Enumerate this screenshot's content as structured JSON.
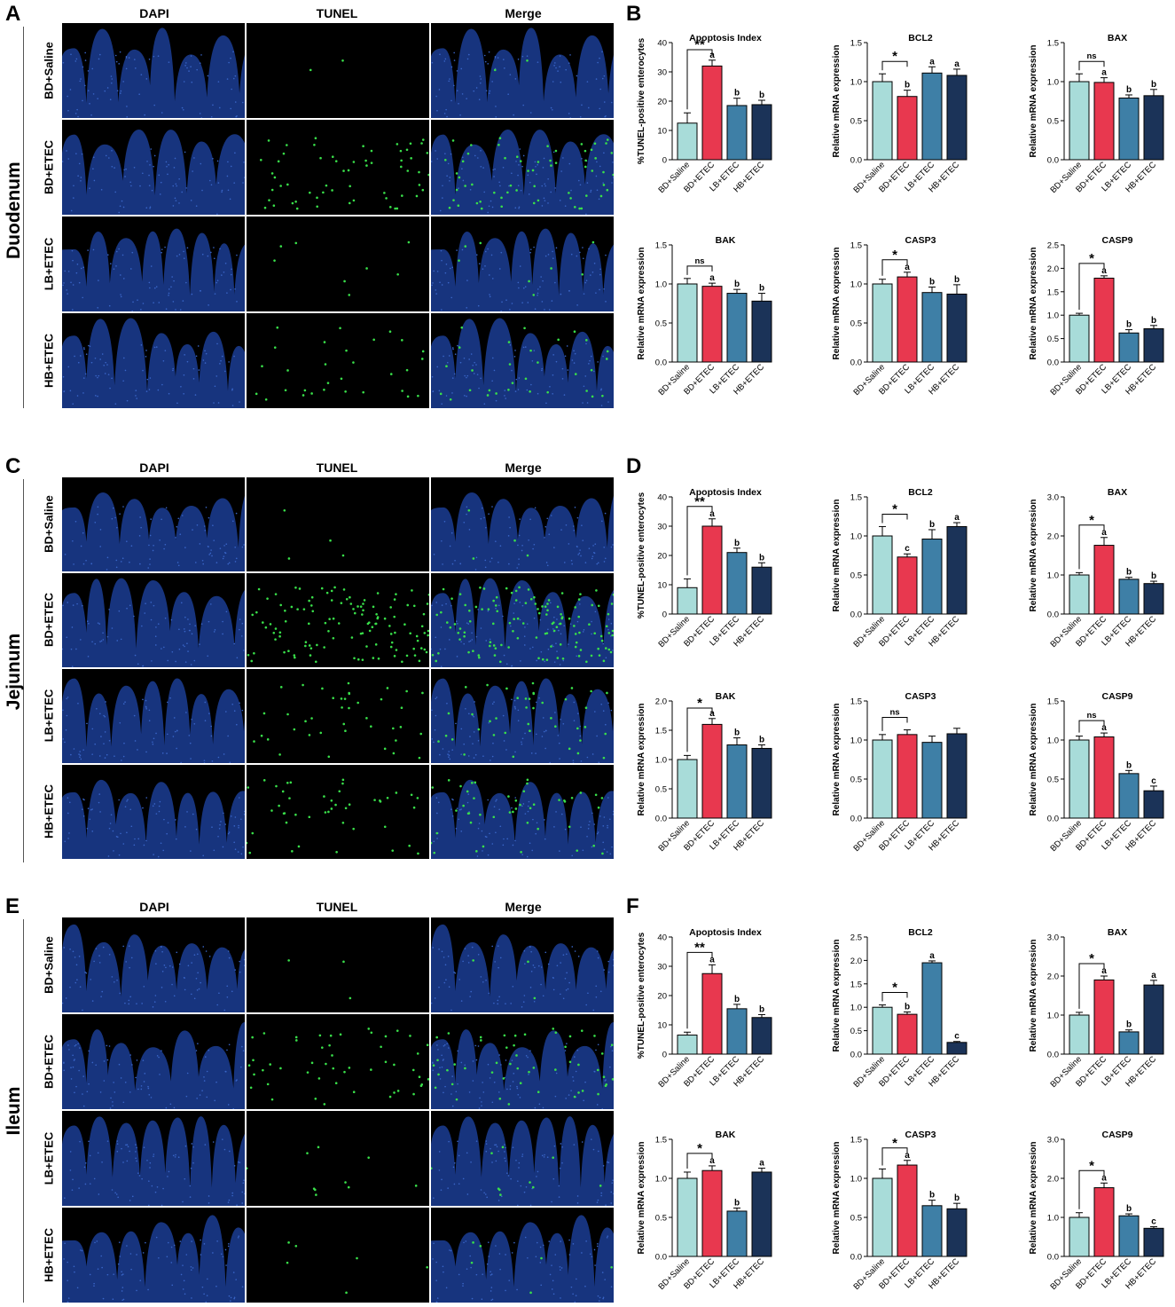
{
  "panels": {
    "A": "A",
    "B": "B",
    "C": "C",
    "D": "D",
    "E": "E",
    "F": "F"
  },
  "tissues": [
    "Duodenum",
    "Jejunum",
    "Ileum"
  ],
  "column_headers": [
    "DAPI",
    "TUNEL",
    "Merge"
  ],
  "row_labels": [
    "BD+Saline",
    "BD+ETEC",
    "LB+ETEC",
    "HB+ETEC"
  ],
  "colors": {
    "bar_fill": [
      "#a8dcd9",
      "#e8384f",
      "#3e7fa6",
      "#1b3358"
    ],
    "dapi": "#1a3a8c",
    "tunel": "#39e04a"
  },
  "chart_data": [
    {
      "type": "bar",
      "title": "Apoptosis Index",
      "ylabel": "%TUNEL-positive enterocytes",
      "categories": [
        "BD+Saline",
        "BD+ETEC",
        "LB+ETEC",
        "HB+ETEC"
      ],
      "values": [
        12.5,
        32,
        18.5,
        18.8
      ],
      "errors": [
        3.5,
        2,
        2.5,
        1.5
      ],
      "letters": [
        "",
        "a",
        "b",
        "b"
      ],
      "ylim": [
        0,
        40
      ],
      "yticks": [
        0,
        10,
        20,
        30,
        40
      ],
      "sig": "**"
    },
    {
      "type": "bar",
      "title": "BCL2",
      "ylabel": "Relative mRNA expression",
      "categories": [
        "BD+Saline",
        "BD+ETEC",
        "LB+ETEC",
        "HB+ETEC"
      ],
      "values": [
        1.0,
        0.81,
        1.11,
        1.08
      ],
      "errors": [
        0.1,
        0.08,
        0.08,
        0.08
      ],
      "letters": [
        "",
        "b",
        "a",
        "a"
      ],
      "ylim": [
        0,
        1.5
      ],
      "yticks": [
        0.0,
        0.5,
        1.0,
        1.5
      ],
      "sig": "*"
    },
    {
      "type": "bar",
      "title": "BAX",
      "ylabel": "Relative mRNA expression",
      "categories": [
        "BD+Saline",
        "BD+ETEC",
        "LB+ETEC",
        "HB+ETEC"
      ],
      "values": [
        1.0,
        0.99,
        0.79,
        0.82
      ],
      "errors": [
        0.1,
        0.06,
        0.04,
        0.08
      ],
      "letters": [
        "",
        "a",
        "b",
        "b"
      ],
      "ylim": [
        0,
        1.5
      ],
      "yticks": [
        0.0,
        0.5,
        1.0,
        1.5
      ],
      "sig": "ns"
    },
    {
      "type": "bar",
      "title": "BAK",
      "ylabel": "Relative mRNA expression",
      "categories": [
        "BD+Saline",
        "BD+ETEC",
        "LB+ETEC",
        "HB+ETEC"
      ],
      "values": [
        1.0,
        0.97,
        0.88,
        0.78
      ],
      "errors": [
        0.07,
        0.04,
        0.05,
        0.1
      ],
      "letters": [
        "",
        "a",
        "b",
        "b"
      ],
      "ylim": [
        0,
        1.5
      ],
      "yticks": [
        0.0,
        0.5,
        1.0,
        1.5
      ],
      "sig": "ns"
    },
    {
      "type": "bar",
      "title": "CASP3",
      "ylabel": "Relative mRNA expression",
      "categories": [
        "BD+Saline",
        "BD+ETEC",
        "LB+ETEC",
        "HB+ETEC"
      ],
      "values": [
        1.0,
        1.09,
        0.89,
        0.87
      ],
      "errors": [
        0.06,
        0.06,
        0.07,
        0.12
      ],
      "letters": [
        "",
        "a",
        "b",
        "b"
      ],
      "ylim": [
        0,
        1.5
      ],
      "yticks": [
        0.0,
        0.5,
        1.0,
        1.5
      ],
      "sig": "*"
    },
    {
      "type": "bar",
      "title": "CASP9",
      "ylabel": "Relative mRNA expression",
      "categories": [
        "BD+Saline",
        "BD+ETEC",
        "LB+ETEC",
        "HB+ETEC"
      ],
      "values": [
        1.0,
        1.79,
        0.62,
        0.71
      ],
      "errors": [
        0.04,
        0.05,
        0.07,
        0.07
      ],
      "letters": [
        "",
        "a",
        "b",
        "b"
      ],
      "ylim": [
        0,
        2.5
      ],
      "yticks": [
        0.0,
        0.5,
        1.0,
        1.5,
        2.0,
        2.5
      ],
      "sig": "*"
    },
    {
      "type": "bar",
      "title": "Apoptosis Index",
      "ylabel": "%TUNEL-positive enterocytes",
      "categories": [
        "BD+Saline",
        "BD+ETEC",
        "LB+ETEC",
        "HB+ETEC"
      ],
      "values": [
        9,
        30,
        21,
        16
      ],
      "errors": [
        3,
        2.5,
        1.5,
        1.5
      ],
      "letters": [
        "",
        "a",
        "b",
        "b"
      ],
      "ylim": [
        0,
        40
      ],
      "yticks": [
        0,
        10,
        20,
        30,
        40
      ],
      "sig": "**"
    },
    {
      "type": "bar",
      "title": "BCL2",
      "ylabel": "Relative mRNA expression",
      "categories": [
        "BD+Saline",
        "BD+ETEC",
        "LB+ETEC",
        "HB+ETEC"
      ],
      "values": [
        1.0,
        0.73,
        0.96,
        1.12
      ],
      "errors": [
        0.12,
        0.04,
        0.12,
        0.05
      ],
      "letters": [
        "",
        "c",
        "b",
        "a"
      ],
      "ylim": [
        0,
        1.5
      ],
      "yticks": [
        0.0,
        0.5,
        1.0,
        1.5
      ],
      "sig": "*"
    },
    {
      "type": "bar",
      "title": "BAX",
      "ylabel": "Relative mRNA expression",
      "categories": [
        "BD+Saline",
        "BD+ETEC",
        "LB+ETEC",
        "HB+ETEC"
      ],
      "values": [
        1.0,
        1.76,
        0.89,
        0.78
      ],
      "errors": [
        0.06,
        0.2,
        0.05,
        0.06
      ],
      "letters": [
        "",
        "a",
        "b",
        "b"
      ],
      "ylim": [
        0,
        3.0
      ],
      "yticks": [
        0.0,
        1.0,
        2.0,
        3.0
      ],
      "sig": "*"
    },
    {
      "type": "bar",
      "title": "BAK",
      "ylabel": "Relative mRNA expression",
      "categories": [
        "BD+Saline",
        "BD+ETEC",
        "LB+ETEC",
        "HB+ETEC"
      ],
      "values": [
        1.0,
        1.6,
        1.25,
        1.19
      ],
      "errors": [
        0.07,
        0.1,
        0.12,
        0.06
      ],
      "letters": [
        "",
        "a",
        "b",
        "b"
      ],
      "ylim": [
        0,
        2.0
      ],
      "yticks": [
        0.0,
        0.5,
        1.0,
        1.5,
        2.0
      ],
      "sig": "*"
    },
    {
      "type": "bar",
      "title": "CASP3",
      "ylabel": "Relative mRNA expression",
      "categories": [
        "BD+Saline",
        "BD+ETEC",
        "LB+ETEC",
        "HB+ETEC"
      ],
      "values": [
        1.0,
        1.07,
        0.97,
        1.08
      ],
      "errors": [
        0.07,
        0.06,
        0.08,
        0.07
      ],
      "letters": [
        "",
        "",
        "",
        ""
      ],
      "ylim": [
        0,
        1.5
      ],
      "yticks": [
        0.0,
        0.5,
        1.0,
        1.5
      ],
      "sig": "ns"
    },
    {
      "type": "bar",
      "title": "CASP9",
      "ylabel": "Relative mRNA expression",
      "categories": [
        "BD+Saline",
        "BD+ETEC",
        "LB+ETEC",
        "HB+ETEC"
      ],
      "values": [
        1.0,
        1.04,
        0.57,
        0.35
      ],
      "errors": [
        0.05,
        0.05,
        0.04,
        0.06
      ],
      "letters": [
        "",
        "a",
        "b",
        "c"
      ],
      "ylim": [
        0,
        1.5
      ],
      "yticks": [
        0.0,
        0.5,
        1.0,
        1.5
      ],
      "sig": "ns"
    },
    {
      "type": "bar",
      "title": "Apoptosis Index",
      "ylabel": "%TUNEL-positive enterocytes",
      "categories": [
        "BD+Saline",
        "BD+ETEC",
        "LB+ETEC",
        "HB+ETEC"
      ],
      "values": [
        6.5,
        27.5,
        15.5,
        12.5
      ],
      "errors": [
        1,
        3,
        1.5,
        1
      ],
      "letters": [
        "",
        "a",
        "b",
        "b"
      ],
      "ylim": [
        0,
        40
      ],
      "yticks": [
        0,
        10,
        20,
        30,
        40
      ],
      "sig": "**"
    },
    {
      "type": "bar",
      "title": "BCL2",
      "ylabel": "Relative mRNA expression",
      "categories": [
        "BD+Saline",
        "BD+ETEC",
        "LB+ETEC",
        "HB+ETEC"
      ],
      "values": [
        1.0,
        0.85,
        1.95,
        0.25
      ],
      "errors": [
        0.05,
        0.05,
        0.04,
        0.02
      ],
      "letters": [
        "",
        "b",
        "a",
        "c"
      ],
      "ylim": [
        0,
        2.5
      ],
      "yticks": [
        0.0,
        0.5,
        1.0,
        1.5,
        2.0,
        2.5
      ],
      "sig": "*"
    },
    {
      "type": "bar",
      "title": "BAX",
      "ylabel": "Relative mRNA expression",
      "categories": [
        "BD+Saline",
        "BD+ETEC",
        "LB+ETEC",
        "HB+ETEC"
      ],
      "values": [
        1.0,
        1.9,
        0.57,
        1.77
      ],
      "errors": [
        0.07,
        0.1,
        0.05,
        0.12
      ],
      "letters": [
        "",
        "a",
        "b",
        "a"
      ],
      "ylim": [
        0,
        3.0
      ],
      "yticks": [
        0.0,
        1.0,
        2.0,
        3.0
      ],
      "sig": "*"
    },
    {
      "type": "bar",
      "title": "BAK",
      "ylabel": "Relative mRNA expression",
      "categories": [
        "BD+Saline",
        "BD+ETEC",
        "LB+ETEC",
        "HB+ETEC"
      ],
      "values": [
        1.0,
        1.1,
        0.58,
        1.08
      ],
      "errors": [
        0.08,
        0.06,
        0.04,
        0.05
      ],
      "letters": [
        "",
        "a",
        "b",
        "a"
      ],
      "ylim": [
        0,
        1.5
      ],
      "yticks": [
        0.0,
        0.5,
        1.0,
        1.5
      ],
      "sig": "*"
    },
    {
      "type": "bar",
      "title": "CASP3",
      "ylabel": "Relative mRNA expression",
      "categories": [
        "BD+Saline",
        "BD+ETEC",
        "LB+ETEC",
        "HB+ETEC"
      ],
      "values": [
        1.0,
        1.17,
        0.65,
        0.61
      ],
      "errors": [
        0.12,
        0.06,
        0.07,
        0.07
      ],
      "letters": [
        "",
        "a",
        "b",
        "b"
      ],
      "ylim": [
        0,
        1.5
      ],
      "yticks": [
        0.0,
        0.5,
        1.0,
        1.5
      ],
      "sig": "*"
    },
    {
      "type": "bar",
      "title": "CASP9",
      "ylabel": "Relative mRNA expression",
      "categories": [
        "BD+Saline",
        "BD+ETEC",
        "LB+ETEC",
        "HB+ETEC"
      ],
      "values": [
        1.0,
        1.76,
        1.04,
        0.72
      ],
      "errors": [
        0.12,
        0.12,
        0.05,
        0.04
      ],
      "letters": [
        "",
        "a",
        "b",
        "c"
      ],
      "ylim": [
        0,
        3.0
      ],
      "yticks": [
        0.0,
        1.0,
        2.0,
        3.0
      ],
      "sig": "*"
    }
  ]
}
